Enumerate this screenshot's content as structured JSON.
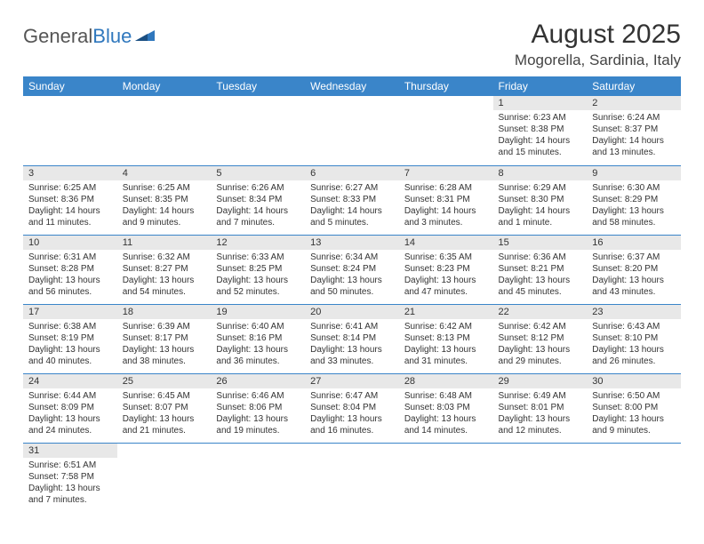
{
  "logo": {
    "text_general": "General",
    "text_blue": "Blue"
  },
  "title": "August 2025",
  "location": "Mogorella, Sardinia, Italy",
  "colors": {
    "header_bg": "#3a85c9",
    "header_text": "#ffffff",
    "daynum_bg": "#e8e8e8",
    "row_divider": "#3a85c9",
    "logo_blue": "#2f77bd",
    "logo_gray": "#555555",
    "body_text": "#333333",
    "background": "#ffffff"
  },
  "typography": {
    "title_fontsize": 30,
    "location_fontsize": 17,
    "header_fontsize": 12,
    "daynum_fontsize": 11,
    "data_fontsize": 10
  },
  "weekdays": [
    "Sunday",
    "Monday",
    "Tuesday",
    "Wednesday",
    "Thursday",
    "Friday",
    "Saturday"
  ],
  "weeks": [
    [
      null,
      null,
      null,
      null,
      null,
      {
        "day": "1",
        "sunrise": "Sunrise: 6:23 AM",
        "sunset": "Sunset: 8:38 PM",
        "daylight": "Daylight: 14 hours and 15 minutes."
      },
      {
        "day": "2",
        "sunrise": "Sunrise: 6:24 AM",
        "sunset": "Sunset: 8:37 PM",
        "daylight": "Daylight: 14 hours and 13 minutes."
      }
    ],
    [
      {
        "day": "3",
        "sunrise": "Sunrise: 6:25 AM",
        "sunset": "Sunset: 8:36 PM",
        "daylight": "Daylight: 14 hours and 11 minutes."
      },
      {
        "day": "4",
        "sunrise": "Sunrise: 6:25 AM",
        "sunset": "Sunset: 8:35 PM",
        "daylight": "Daylight: 14 hours and 9 minutes."
      },
      {
        "day": "5",
        "sunrise": "Sunrise: 6:26 AM",
        "sunset": "Sunset: 8:34 PM",
        "daylight": "Daylight: 14 hours and 7 minutes."
      },
      {
        "day": "6",
        "sunrise": "Sunrise: 6:27 AM",
        "sunset": "Sunset: 8:33 PM",
        "daylight": "Daylight: 14 hours and 5 minutes."
      },
      {
        "day": "7",
        "sunrise": "Sunrise: 6:28 AM",
        "sunset": "Sunset: 8:31 PM",
        "daylight": "Daylight: 14 hours and 3 minutes."
      },
      {
        "day": "8",
        "sunrise": "Sunrise: 6:29 AM",
        "sunset": "Sunset: 8:30 PM",
        "daylight": "Daylight: 14 hours and 1 minute."
      },
      {
        "day": "9",
        "sunrise": "Sunrise: 6:30 AM",
        "sunset": "Sunset: 8:29 PM",
        "daylight": "Daylight: 13 hours and 58 minutes."
      }
    ],
    [
      {
        "day": "10",
        "sunrise": "Sunrise: 6:31 AM",
        "sunset": "Sunset: 8:28 PM",
        "daylight": "Daylight: 13 hours and 56 minutes."
      },
      {
        "day": "11",
        "sunrise": "Sunrise: 6:32 AM",
        "sunset": "Sunset: 8:27 PM",
        "daylight": "Daylight: 13 hours and 54 minutes."
      },
      {
        "day": "12",
        "sunrise": "Sunrise: 6:33 AM",
        "sunset": "Sunset: 8:25 PM",
        "daylight": "Daylight: 13 hours and 52 minutes."
      },
      {
        "day": "13",
        "sunrise": "Sunrise: 6:34 AM",
        "sunset": "Sunset: 8:24 PM",
        "daylight": "Daylight: 13 hours and 50 minutes."
      },
      {
        "day": "14",
        "sunrise": "Sunrise: 6:35 AM",
        "sunset": "Sunset: 8:23 PM",
        "daylight": "Daylight: 13 hours and 47 minutes."
      },
      {
        "day": "15",
        "sunrise": "Sunrise: 6:36 AM",
        "sunset": "Sunset: 8:21 PM",
        "daylight": "Daylight: 13 hours and 45 minutes."
      },
      {
        "day": "16",
        "sunrise": "Sunrise: 6:37 AM",
        "sunset": "Sunset: 8:20 PM",
        "daylight": "Daylight: 13 hours and 43 minutes."
      }
    ],
    [
      {
        "day": "17",
        "sunrise": "Sunrise: 6:38 AM",
        "sunset": "Sunset: 8:19 PM",
        "daylight": "Daylight: 13 hours and 40 minutes."
      },
      {
        "day": "18",
        "sunrise": "Sunrise: 6:39 AM",
        "sunset": "Sunset: 8:17 PM",
        "daylight": "Daylight: 13 hours and 38 minutes."
      },
      {
        "day": "19",
        "sunrise": "Sunrise: 6:40 AM",
        "sunset": "Sunset: 8:16 PM",
        "daylight": "Daylight: 13 hours and 36 minutes."
      },
      {
        "day": "20",
        "sunrise": "Sunrise: 6:41 AM",
        "sunset": "Sunset: 8:14 PM",
        "daylight": "Daylight: 13 hours and 33 minutes."
      },
      {
        "day": "21",
        "sunrise": "Sunrise: 6:42 AM",
        "sunset": "Sunset: 8:13 PM",
        "daylight": "Daylight: 13 hours and 31 minutes."
      },
      {
        "day": "22",
        "sunrise": "Sunrise: 6:42 AM",
        "sunset": "Sunset: 8:12 PM",
        "daylight": "Daylight: 13 hours and 29 minutes."
      },
      {
        "day": "23",
        "sunrise": "Sunrise: 6:43 AM",
        "sunset": "Sunset: 8:10 PM",
        "daylight": "Daylight: 13 hours and 26 minutes."
      }
    ],
    [
      {
        "day": "24",
        "sunrise": "Sunrise: 6:44 AM",
        "sunset": "Sunset: 8:09 PM",
        "daylight": "Daylight: 13 hours and 24 minutes."
      },
      {
        "day": "25",
        "sunrise": "Sunrise: 6:45 AM",
        "sunset": "Sunset: 8:07 PM",
        "daylight": "Daylight: 13 hours and 21 minutes."
      },
      {
        "day": "26",
        "sunrise": "Sunrise: 6:46 AM",
        "sunset": "Sunset: 8:06 PM",
        "daylight": "Daylight: 13 hours and 19 minutes."
      },
      {
        "day": "27",
        "sunrise": "Sunrise: 6:47 AM",
        "sunset": "Sunset: 8:04 PM",
        "daylight": "Daylight: 13 hours and 16 minutes."
      },
      {
        "day": "28",
        "sunrise": "Sunrise: 6:48 AM",
        "sunset": "Sunset: 8:03 PM",
        "daylight": "Daylight: 13 hours and 14 minutes."
      },
      {
        "day": "29",
        "sunrise": "Sunrise: 6:49 AM",
        "sunset": "Sunset: 8:01 PM",
        "daylight": "Daylight: 13 hours and 12 minutes."
      },
      {
        "day": "30",
        "sunrise": "Sunrise: 6:50 AM",
        "sunset": "Sunset: 8:00 PM",
        "daylight": "Daylight: 13 hours and 9 minutes."
      }
    ],
    [
      {
        "day": "31",
        "sunrise": "Sunrise: 6:51 AM",
        "sunset": "Sunset: 7:58 PM",
        "daylight": "Daylight: 13 hours and 7 minutes."
      },
      null,
      null,
      null,
      null,
      null,
      null
    ]
  ]
}
